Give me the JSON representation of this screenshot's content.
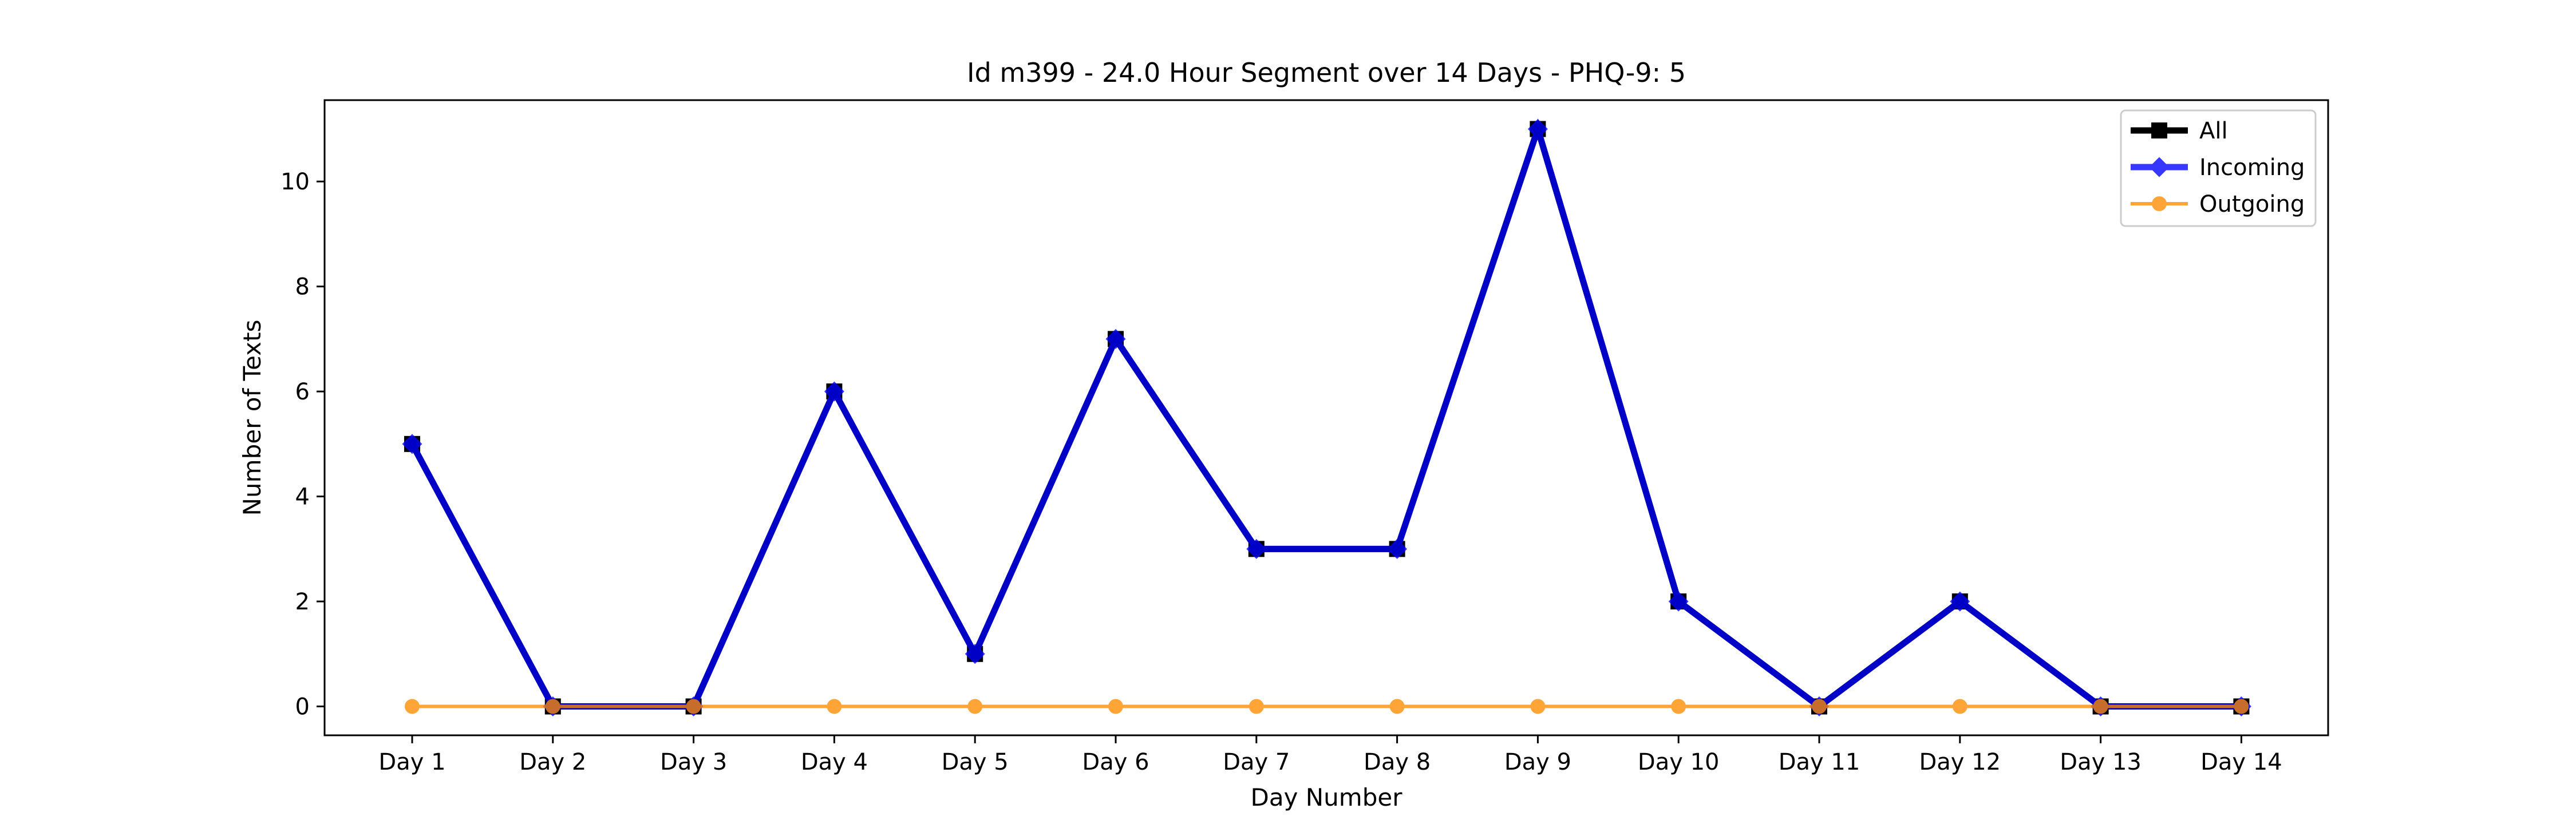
{
  "chart_data": {
    "type": "line",
    "title": "Id m399 - 24.0 Hour Segment over 14 Days - PHQ-9: 5",
    "xlabel": "Day Number",
    "ylabel": "Number of Texts",
    "categories": [
      "Day 1",
      "Day 2",
      "Day 3",
      "Day 4",
      "Day 5",
      "Day 6",
      "Day 7",
      "Day 8",
      "Day 9",
      "Day 10",
      "Day 11",
      "Day 12",
      "Day 13",
      "Day 14"
    ],
    "ylim": [
      -0.55,
      11.55
    ],
    "yticks": [
      0,
      2,
      4,
      6,
      8,
      10
    ],
    "grid": false,
    "legend_position": "top-right",
    "series": [
      {
        "name": "All",
        "color": "#000000",
        "marker": "square",
        "values": [
          5,
          0,
          0,
          6,
          1,
          7,
          3,
          3,
          11,
          2,
          0,
          2,
          0,
          0
        ]
      },
      {
        "name": "Incoming",
        "color": "#0000ff",
        "marker": "diamond",
        "values": [
          5,
          0,
          0,
          6,
          1,
          7,
          3,
          3,
          11,
          2,
          0,
          2,
          0,
          0
        ]
      },
      {
        "name": "Outgoing",
        "color": "#ff8c00",
        "marker": "circle",
        "values": [
          0,
          0,
          0,
          0,
          0,
          0,
          0,
          0,
          0,
          0,
          0,
          0,
          0,
          0
        ]
      }
    ]
  }
}
